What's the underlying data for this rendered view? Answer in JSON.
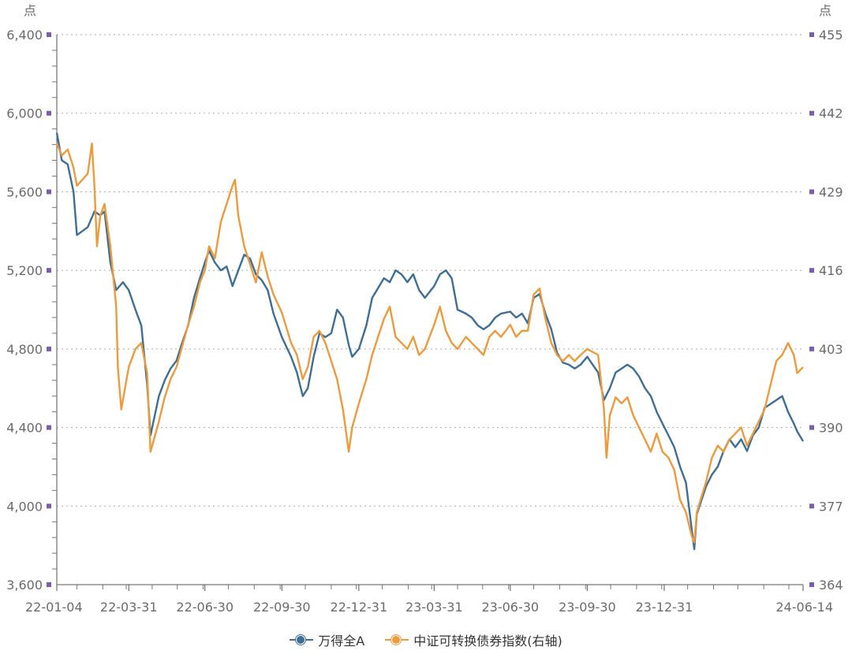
{
  "chart_data": {
    "type": "line",
    "left_unit": "点",
    "right_unit": "点",
    "xlim": [
      "2022-01-04",
      "2024-06-14"
    ],
    "x_ticks": [
      "22-01-04",
      "22-03-31",
      "22-06-30",
      "22-09-30",
      "22-12-31",
      "23-03-31",
      "23-06-30",
      "23-09-30",
      "23-12-31",
      "24-06-14"
    ],
    "y_left": {
      "range": [
        3600,
        6400
      ],
      "ticks": [
        "3,600",
        "4,000",
        "4,400",
        "4,800",
        "5,200",
        "5,600",
        "6,000",
        "6,400"
      ]
    },
    "y_right": {
      "range": [
        364,
        455
      ],
      "ticks": [
        "364",
        "377",
        "390",
        "403",
        "416",
        "429",
        "442",
        "455"
      ]
    },
    "grid": "horizontal dotted",
    "legend_position": "bottom-center",
    "series": [
      {
        "name": "万得全A",
        "axis": "left",
        "color": "#3c6e96",
        "points": [
          [
            "2022-01-04",
            5900
          ],
          [
            "2022-01-10",
            5760
          ],
          [
            "2022-01-17",
            5740
          ],
          [
            "2022-01-24",
            5600
          ],
          [
            "2022-01-28",
            5380
          ],
          [
            "2022-02-10",
            5420
          ],
          [
            "2022-02-18",
            5500
          ],
          [
            "2022-02-25",
            5480
          ],
          [
            "2022-03-02",
            5500
          ],
          [
            "2022-03-09",
            5240
          ],
          [
            "2022-03-16",
            5100
          ],
          [
            "2022-03-24",
            5140
          ],
          [
            "2022-03-31",
            5100
          ],
          [
            "2022-04-08",
            5000
          ],
          [
            "2022-04-15",
            4920
          ],
          [
            "2022-04-22",
            4620
          ],
          [
            "2022-04-26",
            4360
          ],
          [
            "2022-05-06",
            4560
          ],
          [
            "2022-05-13",
            4640
          ],
          [
            "2022-05-20",
            4700
          ],
          [
            "2022-05-27",
            4740
          ],
          [
            "2022-06-02",
            4820
          ],
          [
            "2022-06-10",
            4920
          ],
          [
            "2022-06-17",
            5060
          ],
          [
            "2022-06-24",
            5160
          ],
          [
            "2022-06-30",
            5240
          ],
          [
            "2022-07-05",
            5300
          ],
          [
            "2022-07-12",
            5240
          ],
          [
            "2022-07-19",
            5200
          ],
          [
            "2022-07-26",
            5220
          ],
          [
            "2022-08-02",
            5120
          ],
          [
            "2022-08-09",
            5200
          ],
          [
            "2022-08-16",
            5280
          ],
          [
            "2022-08-23",
            5260
          ],
          [
            "2022-08-30",
            5180
          ],
          [
            "2022-09-06",
            5150
          ],
          [
            "2022-09-13",
            5100
          ],
          [
            "2022-09-20",
            4980
          ],
          [
            "2022-09-30",
            4860
          ],
          [
            "2022-10-11",
            4760
          ],
          [
            "2022-10-18",
            4680
          ],
          [
            "2022-10-25",
            4560
          ],
          [
            "2022-10-31",
            4600
          ],
          [
            "2022-11-07",
            4760
          ],
          [
            "2022-11-14",
            4880
          ],
          [
            "2022-11-21",
            4860
          ],
          [
            "2022-11-28",
            4880
          ],
          [
            "2022-12-05",
            5000
          ],
          [
            "2022-12-12",
            4960
          ],
          [
            "2022-12-19",
            4820
          ],
          [
            "2022-12-23",
            4760
          ],
          [
            "2022-12-31",
            4800
          ],
          [
            "2023-01-09",
            4920
          ],
          [
            "2023-01-16",
            5060
          ],
          [
            "2023-01-30",
            5160
          ],
          [
            "2023-02-06",
            5140
          ],
          [
            "2023-02-13",
            5200
          ],
          [
            "2023-02-20",
            5180
          ],
          [
            "2023-02-27",
            5140
          ],
          [
            "2023-03-06",
            5180
          ],
          [
            "2023-03-13",
            5100
          ],
          [
            "2023-03-20",
            5060
          ],
          [
            "2023-03-31",
            5120
          ],
          [
            "2023-04-07",
            5180
          ],
          [
            "2023-04-14",
            5200
          ],
          [
            "2023-04-21",
            5160
          ],
          [
            "2023-04-28",
            5000
          ],
          [
            "2023-05-08",
            4980
          ],
          [
            "2023-05-15",
            4960
          ],
          [
            "2023-05-22",
            4920
          ],
          [
            "2023-05-29",
            4900
          ],
          [
            "2023-06-05",
            4920
          ],
          [
            "2023-06-12",
            4960
          ],
          [
            "2023-06-19",
            4980
          ],
          [
            "2023-06-30",
            4990
          ],
          [
            "2023-07-07",
            4960
          ],
          [
            "2023-07-14",
            4980
          ],
          [
            "2023-07-21",
            4930
          ],
          [
            "2023-07-28",
            5060
          ],
          [
            "2023-08-04",
            5080
          ],
          [
            "2023-08-11",
            4980
          ],
          [
            "2023-08-18",
            4900
          ],
          [
            "2023-08-25",
            4780
          ],
          [
            "2023-09-01",
            4730
          ],
          [
            "2023-09-08",
            4720
          ],
          [
            "2023-09-15",
            4700
          ],
          [
            "2023-09-22",
            4720
          ],
          [
            "2023-09-30",
            4760
          ],
          [
            "2023-10-13",
            4680
          ],
          [
            "2023-10-20",
            4540
          ],
          [
            "2023-10-27",
            4600
          ],
          [
            "2023-11-03",
            4680
          ],
          [
            "2023-11-10",
            4700
          ],
          [
            "2023-11-17",
            4720
          ],
          [
            "2023-11-24",
            4700
          ],
          [
            "2023-12-01",
            4660
          ],
          [
            "2023-12-08",
            4600
          ],
          [
            "2023-12-15",
            4560
          ],
          [
            "2023-12-22",
            4480
          ],
          [
            "2023-12-29",
            4420
          ],
          [
            "2024-01-05",
            4360
          ],
          [
            "2024-01-12",
            4300
          ],
          [
            "2024-01-19",
            4200
          ],
          [
            "2024-01-26",
            4120
          ],
          [
            "2024-02-02",
            3880
          ],
          [
            "2024-02-05",
            3780
          ],
          [
            "2024-02-08",
            3960
          ],
          [
            "2024-02-19",
            4100
          ],
          [
            "2024-02-26",
            4160
          ],
          [
            "2024-03-04",
            4200
          ],
          [
            "2024-03-11",
            4280
          ],
          [
            "2024-03-18",
            4340
          ],
          [
            "2024-03-25",
            4300
          ],
          [
            "2024-04-01",
            4340
          ],
          [
            "2024-04-08",
            4280
          ],
          [
            "2024-04-15",
            4360
          ],
          [
            "2024-04-22",
            4400
          ],
          [
            "2024-04-29",
            4500
          ],
          [
            "2024-05-06",
            4520
          ],
          [
            "2024-05-13",
            4540
          ],
          [
            "2024-05-20",
            4560
          ],
          [
            "2024-05-27",
            4480
          ],
          [
            "2024-06-03",
            4420
          ],
          [
            "2024-06-07",
            4380
          ],
          [
            "2024-06-14",
            4330
          ]
        ]
      },
      {
        "name": "中证可转换债券指数(右轴)",
        "axis": "right",
        "color": "#ec9a3c",
        "points": [
          [
            "2022-01-04",
            437
          ],
          [
            "2022-01-10",
            435
          ],
          [
            "2022-01-17",
            436
          ],
          [
            "2022-01-24",
            433
          ],
          [
            "2022-01-28",
            430
          ],
          [
            "2022-02-10",
            432
          ],
          [
            "2022-02-15",
            437
          ],
          [
            "2022-02-18",
            430
          ],
          [
            "2022-02-21",
            420
          ],
          [
            "2022-02-25",
            425
          ],
          [
            "2022-03-02",
            427
          ],
          [
            "2022-03-09",
            420
          ],
          [
            "2022-03-16",
            410
          ],
          [
            "2022-03-18",
            400
          ],
          [
            "2022-03-22",
            393
          ],
          [
            "2022-03-31",
            400
          ],
          [
            "2022-04-08",
            403
          ],
          [
            "2022-04-15",
            404
          ],
          [
            "2022-04-22",
            399
          ],
          [
            "2022-04-26",
            386
          ],
          [
            "2022-05-06",
            391
          ],
          [
            "2022-05-13",
            395
          ],
          [
            "2022-05-20",
            398
          ],
          [
            "2022-05-27",
            400
          ],
          [
            "2022-06-02",
            403
          ],
          [
            "2022-06-10",
            407
          ],
          [
            "2022-06-17",
            410
          ],
          [
            "2022-06-24",
            414
          ],
          [
            "2022-06-30",
            416
          ],
          [
            "2022-07-05",
            420
          ],
          [
            "2022-07-12",
            418
          ],
          [
            "2022-07-19",
            424
          ],
          [
            "2022-07-26",
            427
          ],
          [
            "2022-08-02",
            430
          ],
          [
            "2022-08-05",
            431
          ],
          [
            "2022-08-09",
            425
          ],
          [
            "2022-08-16",
            420
          ],
          [
            "2022-08-23",
            417
          ],
          [
            "2022-08-30",
            414
          ],
          [
            "2022-09-06",
            419
          ],
          [
            "2022-09-13",
            415
          ],
          [
            "2022-09-20",
            412
          ],
          [
            "2022-09-30",
            409
          ],
          [
            "2022-10-11",
            404
          ],
          [
            "2022-10-18",
            402
          ],
          [
            "2022-10-25",
            398
          ],
          [
            "2022-10-31",
            400
          ],
          [
            "2022-11-07",
            405
          ],
          [
            "2022-11-14",
            406
          ],
          [
            "2022-11-21",
            404
          ],
          [
            "2022-11-28",
            401
          ],
          [
            "2022-12-05",
            398
          ],
          [
            "2022-12-12",
            393
          ],
          [
            "2022-12-19",
            386
          ],
          [
            "2022-12-23",
            390
          ],
          [
            "2022-12-31",
            394
          ],
          [
            "2023-01-09",
            398
          ],
          [
            "2023-01-16",
            402
          ],
          [
            "2023-01-30",
            408
          ],
          [
            "2023-02-06",
            410
          ],
          [
            "2023-02-13",
            405
          ],
          [
            "2023-02-20",
            404
          ],
          [
            "2023-02-27",
            403
          ],
          [
            "2023-03-06",
            405
          ],
          [
            "2023-03-13",
            402
          ],
          [
            "2023-03-20",
            403
          ],
          [
            "2023-03-31",
            407
          ],
          [
            "2023-04-07",
            410
          ],
          [
            "2023-04-14",
            406
          ],
          [
            "2023-04-21",
            404
          ],
          [
            "2023-04-28",
            403
          ],
          [
            "2023-05-08",
            405
          ],
          [
            "2023-05-15",
            404
          ],
          [
            "2023-05-22",
            403
          ],
          [
            "2023-05-29",
            402
          ],
          [
            "2023-06-05",
            405
          ],
          [
            "2023-06-12",
            406
          ],
          [
            "2023-06-19",
            405
          ],
          [
            "2023-06-30",
            407
          ],
          [
            "2023-07-07",
            405
          ],
          [
            "2023-07-14",
            406
          ],
          [
            "2023-07-21",
            406
          ],
          [
            "2023-07-28",
            412
          ],
          [
            "2023-08-04",
            413
          ],
          [
            "2023-08-11",
            408
          ],
          [
            "2023-08-18",
            404
          ],
          [
            "2023-08-25",
            402
          ],
          [
            "2023-09-01",
            401
          ],
          [
            "2023-09-08",
            402
          ],
          [
            "2023-09-15",
            401
          ],
          [
            "2023-09-22",
            402
          ],
          [
            "2023-09-30",
            403
          ],
          [
            "2023-10-13",
            402
          ],
          [
            "2023-10-20",
            393
          ],
          [
            "2023-10-23",
            385
          ],
          [
            "2023-10-27",
            392
          ],
          [
            "2023-11-03",
            395
          ],
          [
            "2023-11-10",
            394
          ],
          [
            "2023-11-17",
            395
          ],
          [
            "2023-11-24",
            392
          ],
          [
            "2023-12-01",
            390
          ],
          [
            "2023-12-08",
            388
          ],
          [
            "2023-12-15",
            386
          ],
          [
            "2023-12-22",
            389
          ],
          [
            "2023-12-29",
            386
          ],
          [
            "2024-01-05",
            385
          ],
          [
            "2024-01-12",
            383
          ],
          [
            "2024-01-19",
            378
          ],
          [
            "2024-01-26",
            376
          ],
          [
            "2024-02-02",
            372
          ],
          [
            "2024-02-05",
            371
          ],
          [
            "2024-02-08",
            376
          ],
          [
            "2024-02-19",
            381
          ],
          [
            "2024-02-26",
            385
          ],
          [
            "2024-03-04",
            387
          ],
          [
            "2024-03-11",
            386
          ],
          [
            "2024-03-18",
            388
          ],
          [
            "2024-03-25",
            389
          ],
          [
            "2024-04-01",
            390
          ],
          [
            "2024-04-08",
            387
          ],
          [
            "2024-04-15",
            389
          ],
          [
            "2024-04-22",
            391
          ],
          [
            "2024-04-29",
            393
          ],
          [
            "2024-05-06",
            397
          ],
          [
            "2024-05-13",
            401
          ],
          [
            "2024-05-20",
            402
          ],
          [
            "2024-05-27",
            404
          ],
          [
            "2024-06-03",
            402
          ],
          [
            "2024-06-07",
            399
          ],
          [
            "2024-06-14",
            400
          ]
        ]
      }
    ]
  }
}
